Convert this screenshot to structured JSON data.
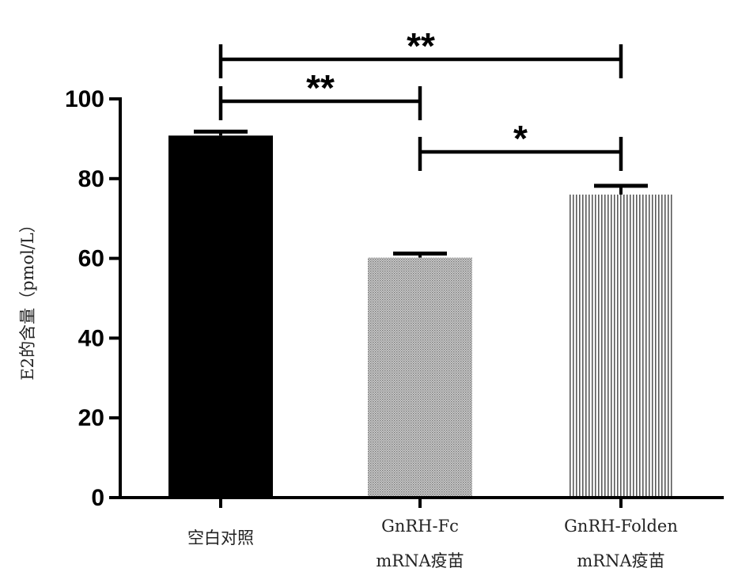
{
  "chart_data": {
    "type": "bar",
    "ylabel": "E2的含量（pmol/L）",
    "xlabel": "",
    "ylim": [
      0,
      100
    ],
    "yticks": [
      0,
      20,
      40,
      60,
      80,
      100
    ],
    "categories": [
      {
        "lines": [
          "空白对照"
        ]
      },
      {
        "lines": [
          "GnRH-Fc",
          "mRNA疫苗"
        ]
      },
      {
        "lines": [
          "GnRH-Folden",
          "mRNA疫苗"
        ]
      }
    ],
    "values": [
      90.8,
      60.2,
      76.0
    ],
    "errors": [
      1.0,
      1.0,
      2.2
    ],
    "bar_fills": [
      "solid",
      "fine-stipple",
      "vertical-lines"
    ],
    "bar_colors": [
      "#000000",
      "#8c8c8c",
      "#6a6a6a"
    ],
    "significance": [
      {
        "from": 0,
        "to": 2,
        "label": "**"
      },
      {
        "from": 0,
        "to": 1,
        "label": "**"
      },
      {
        "from": 1,
        "to": 2,
        "label": "*"
      }
    ],
    "grid": false,
    "legend": "none"
  }
}
